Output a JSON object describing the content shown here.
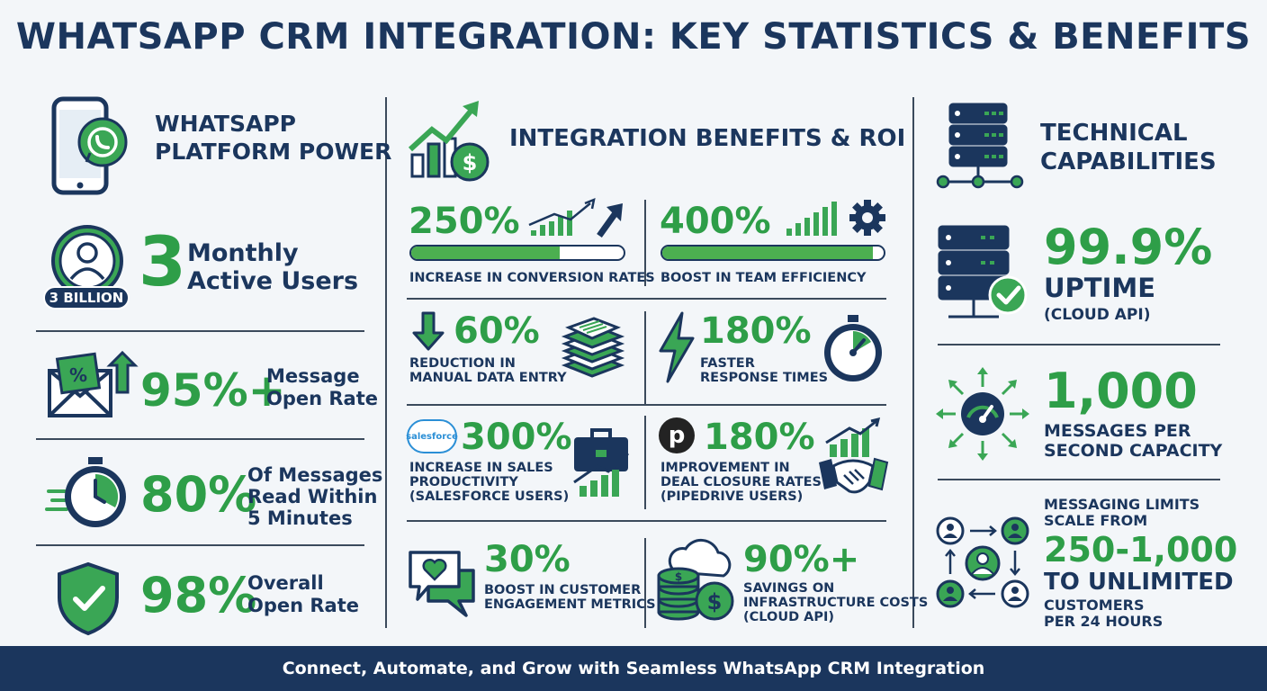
{
  "title": "WHATSAPP CRM INTEGRATION: KEY STATISTICS & BENEFITS",
  "footer": "Connect, Automate, and Grow with Seamless WhatsApp CRM Integration",
  "left": {
    "heading_line1": "WHATSAPP",
    "heading_line2": "PLATFORM POWER",
    "users": {
      "number": "3",
      "badge": "3 BILLION",
      "line1": "Monthly",
      "line2": "Active Users"
    },
    "open_rate": {
      "number": "95%+",
      "line1": "Message",
      "line2": "Open Rate"
    },
    "read": {
      "number": "80%",
      "line1": "Of Messages",
      "line2": "Read Within",
      "line3": "5 Minutes"
    },
    "overall": {
      "number": "98%",
      "line1": "Overall",
      "line2": "Open Rate"
    }
  },
  "middle": {
    "heading": "INTEGRATION BENEFITS & ROI",
    "conversion": {
      "number": "250%",
      "label": "INCREASE IN CONVERSION RATES",
      "progress": 0.7
    },
    "efficiency": {
      "number": "400%",
      "label": "BOOST IN TEAM EFFICIENCY",
      "progress": 0.95
    },
    "manual": {
      "number": "60%",
      "line1": "REDUCTION IN",
      "line2": "MANUAL DATA ENTRY"
    },
    "response": {
      "number": "180%",
      "line1": "FASTER",
      "line2": "RESPONSE TIMES"
    },
    "sales": {
      "logo": "salesforce",
      "number": "300%",
      "line1": "INCREASE IN SALES",
      "line2": "PRODUCTIVITY",
      "line3": "(SALESFORCE USERS)"
    },
    "deal": {
      "logo": "p",
      "number": "180%",
      "line1": "IMPROVEMENT IN",
      "line2": "DEAL CLOSURE RATES",
      "line3": "(PIPEDRIVE USERS)"
    },
    "engagement": {
      "number": "30%",
      "line1": "BOOST IN CUSTOMER",
      "line2": "ENGAGEMENT METRICS"
    },
    "savings": {
      "number": "90%+",
      "line1": "SAVINGS ON",
      "line2": "INFRASTRUCTURE COSTS",
      "line3": "(CLOUD API)"
    }
  },
  "right": {
    "heading_line1": "TECHNICAL",
    "heading_line2": "CAPABILITIES",
    "uptime": {
      "number": "99.9%",
      "line1": "UPTIME",
      "line2": "(CLOUD API)"
    },
    "throughput": {
      "number": "1,000",
      "line1": "MESSAGES PER",
      "line2": "SECOND CAPACITY"
    },
    "limits": {
      "line1": "MESSAGING LIMITS",
      "line2": "SCALE FROM",
      "range": "250-1,000",
      "line3": "TO UNLIMITED",
      "line4": "CUSTOMERS",
      "line5": "PER 24 HOURS"
    }
  },
  "colors": {
    "navy": "#1b365d",
    "green": "#2e9e48",
    "light_green": "#4caf50",
    "background": "#f3f6f9"
  }
}
